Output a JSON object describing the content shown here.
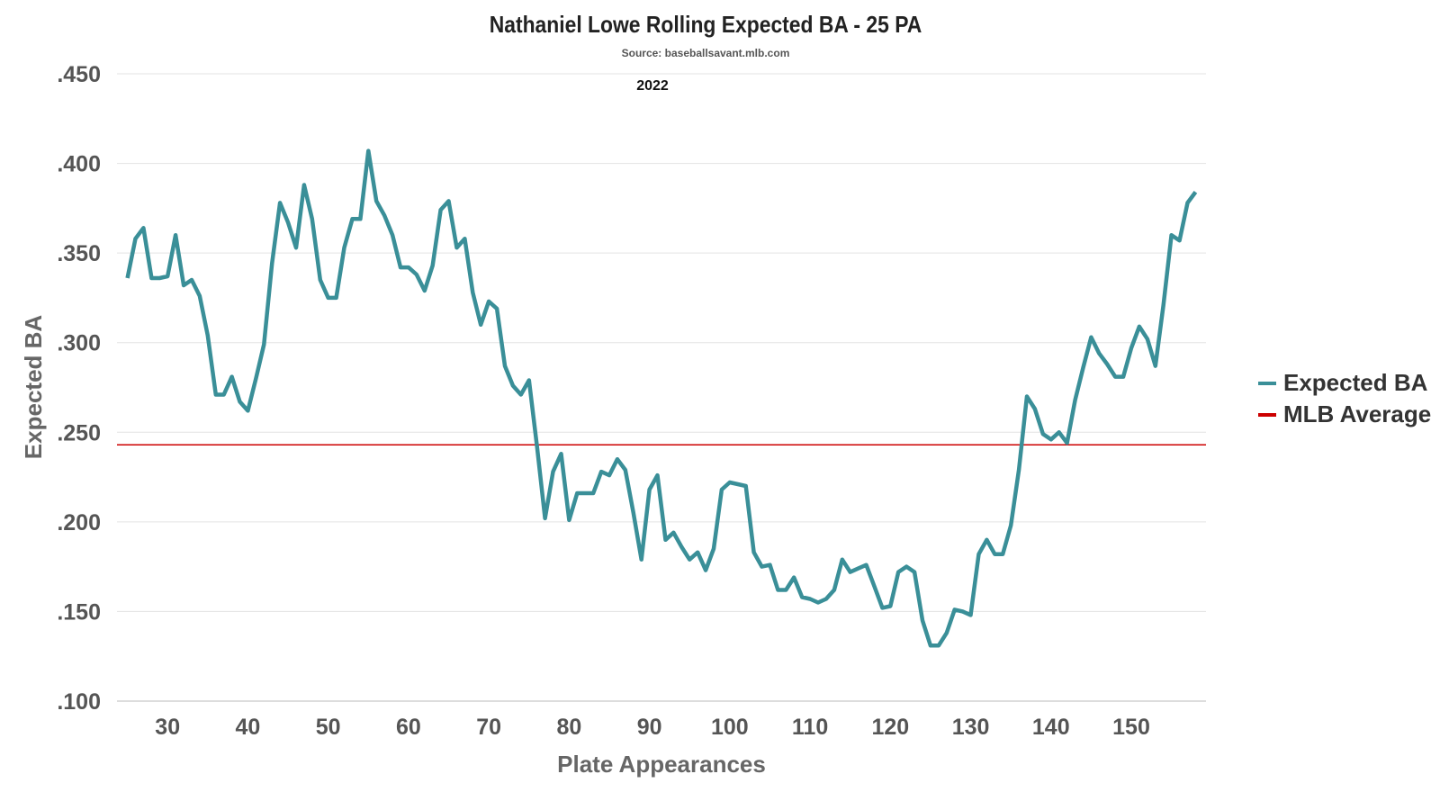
{
  "chart_data": {
    "type": "line",
    "title": "Nathaniel Lowe Rolling Expected BA - 25 PA",
    "subtitle": "Source: baseballsavant.mlb.com",
    "annotation": "2022",
    "xlabel": "Plate Appearances",
    "ylabel": "Expected BA",
    "xlim": [
      23.7,
      159.3
    ],
    "ylim": [
      0.1,
      0.45
    ],
    "grid": true,
    "legend_position": "right",
    "x_ticks": [
      30,
      40,
      50,
      60,
      70,
      80,
      90,
      100,
      110,
      120,
      130,
      140,
      150
    ],
    "x_tick_labels": [
      "30",
      "40",
      "50",
      "60",
      "70",
      "80",
      "90",
      "100",
      "110",
      "120",
      "130",
      "140",
      "150"
    ],
    "y_ticks": [
      0.1,
      0.15,
      0.2,
      0.25,
      0.3,
      0.35,
      0.4,
      0.45
    ],
    "y_tick_labels": [
      ".100",
      ".150",
      ".200",
      ".250",
      ".300",
      ".350",
      ".400",
      ".450"
    ],
    "x_start": 25,
    "series": [
      {
        "name": "Expected BA",
        "color": "#3a8f98",
        "values": [
          0.336,
          0.358,
          0.364,
          0.336,
          0.336,
          0.337,
          0.36,
          0.332,
          0.335,
          0.326,
          0.304,
          0.271,
          0.271,
          0.281,
          0.267,
          0.262,
          0.28,
          0.299,
          0.344,
          0.378,
          0.367,
          0.353,
          0.388,
          0.369,
          0.335,
          0.325,
          0.325,
          0.353,
          0.369,
          0.369,
          0.407,
          0.379,
          0.371,
          0.36,
          0.342,
          0.342,
          0.338,
          0.329,
          0.343,
          0.374,
          0.379,
          0.353,
          0.358,
          0.328,
          0.31,
          0.323,
          0.319,
          0.287,
          0.276,
          0.271,
          0.279,
          0.242,
          0.202,
          0.228,
          0.238,
          0.201,
          0.216,
          0.216,
          0.216,
          0.228,
          0.226,
          0.235,
          0.229,
          0.205,
          0.179,
          0.218,
          0.226,
          0.19,
          0.194,
          0.186,
          0.179,
          0.183,
          0.173,
          0.185,
          0.218,
          0.222,
          0.221,
          0.22,
          0.183,
          0.175,
          0.176,
          0.162,
          0.162,
          0.169,
          0.158,
          0.157,
          0.155,
          0.157,
          0.162,
          0.179,
          0.172,
          0.174,
          0.176,
          0.164,
          0.152,
          0.153,
          0.172,
          0.175,
          0.172,
          0.145,
          0.131,
          0.131,
          0.138,
          0.151,
          0.15,
          0.148,
          0.182,
          0.19,
          0.182,
          0.182,
          0.198,
          0.229,
          0.27,
          0.263,
          0.249,
          0.246,
          0.25,
          0.244,
          0.268,
          0.286,
          0.303,
          0.294,
          0.288,
          0.281,
          0.281,
          0.297,
          0.309,
          0.302,
          0.287,
          0.321,
          0.36,
          0.357,
          0.378,
          0.384
        ]
      },
      {
        "name": "MLB Average",
        "color": "#cc0000",
        "value": 0.243
      }
    ]
  }
}
